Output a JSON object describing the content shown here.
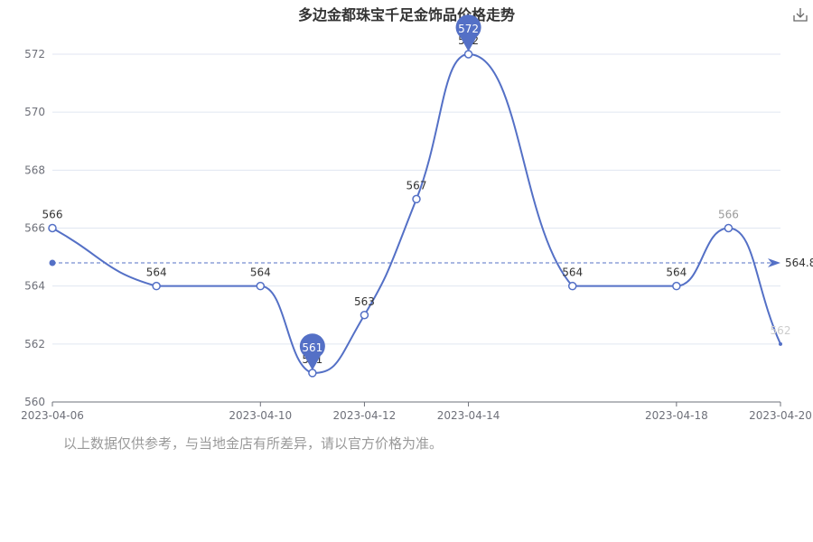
{
  "chart_data": {
    "type": "line",
    "title": "多边金都珠宝千足金饰品价格走势",
    "x": [
      "2023-04-06",
      "2023-04-08",
      "2023-04-10",
      "2023-04-11",
      "2023-04-12",
      "2023-04-13",
      "2023-04-14",
      "2023-04-16",
      "2023-04-18",
      "2023-04-19",
      "2023-04-20"
    ],
    "y": [
      566,
      564,
      564,
      561,
      563,
      567,
      572,
      564,
      564,
      566,
      562
    ],
    "x_ticks": [
      "2023-04-06",
      "2023-04-10",
      "2023-04-12",
      "2023-04-14",
      "2023-04-18",
      "2023-04-20"
    ],
    "ylim": [
      560,
      572
    ],
    "y_ticks": [
      560,
      562,
      564,
      566,
      568,
      570,
      572
    ],
    "mark_max": {
      "label": "572",
      "value": 572
    },
    "mark_min": {
      "label": "561",
      "value": 561
    },
    "average_line": {
      "label": "564.8",
      "value": 564.8
    },
    "grid": true,
    "colors": {
      "line": "#5470c6",
      "grid": "#e0e6f1",
      "axis": "#6e7079",
      "label": "#333333"
    }
  },
  "footnote": "以上数据仅供参考，与当地金店有所差异，请以官方价格为准。",
  "toolbar": {
    "download_icon": "download-icon"
  }
}
